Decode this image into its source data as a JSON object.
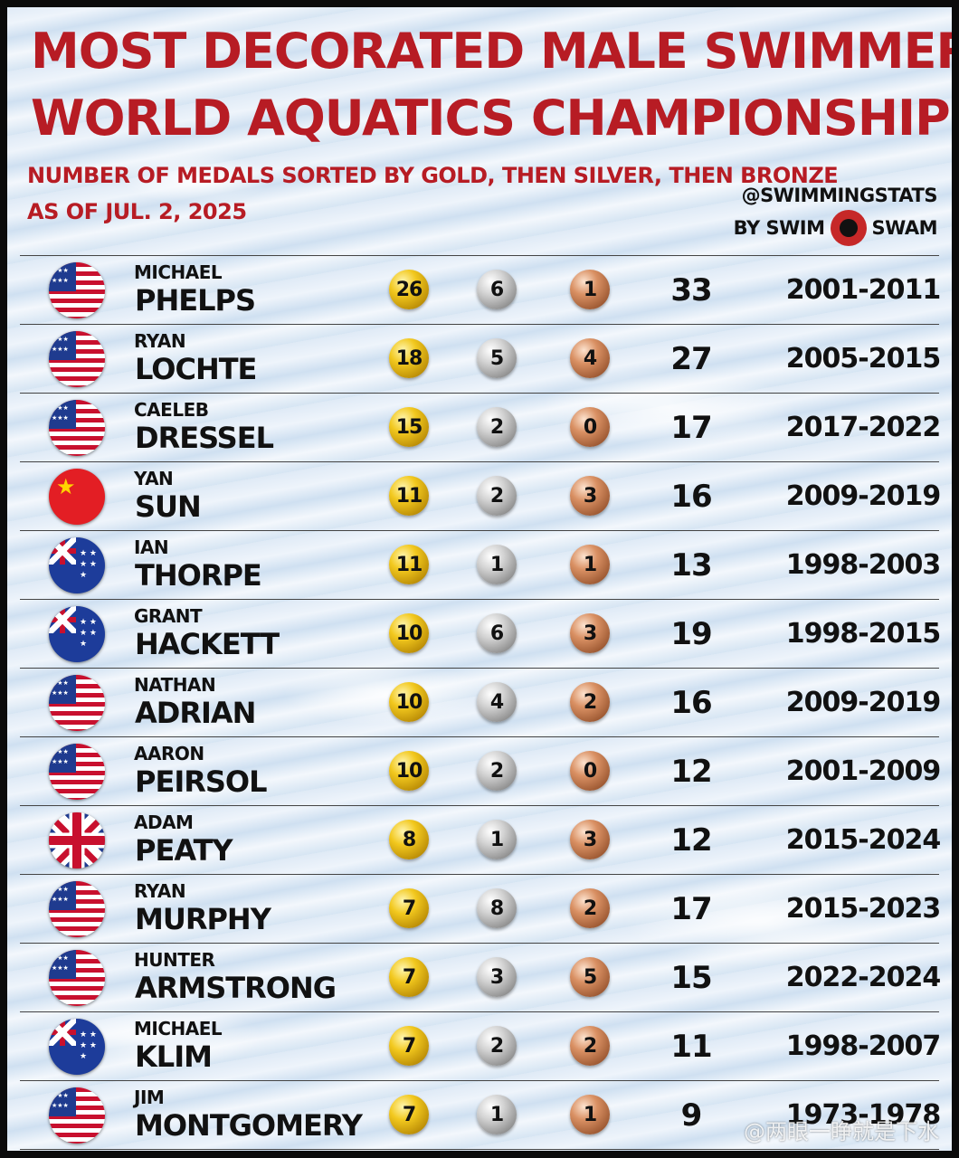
{
  "title": {
    "line1": "MOST DECORATED MALE SWIMMERS",
    "line2": "WORLD AQUATICS CHAMPIONSHIPS"
  },
  "subtitle": {
    "line1": "NUMBER OF MEDALS SORTED BY GOLD, THEN SILVER, THEN BRONZE",
    "line2": "AS OF JUL. 2, 2025"
  },
  "credit": {
    "handle": "@SWIMMINGSTATS",
    "by": "BY SWIM",
    "brand": "SWAM"
  },
  "colors": {
    "title_red": "#b71c24",
    "gold": "#f2c81e",
    "silver": "#d2d2d2",
    "bronze": "#d99063"
  },
  "swimmers": [
    {
      "first": "MICHAEL",
      "last": "PHELPS",
      "flag": "usa",
      "gold": "26",
      "silver": "6",
      "bronze": "1",
      "total": "33",
      "years": "2001-2011"
    },
    {
      "first": "RYAN",
      "last": "LOCHTE",
      "flag": "usa",
      "gold": "18",
      "silver": "5",
      "bronze": "4",
      "total": "27",
      "years": "2005-2015"
    },
    {
      "first": "CAELEB",
      "last": "DRESSEL",
      "flag": "usa",
      "gold": "15",
      "silver": "2",
      "bronze": "0",
      "total": "17",
      "years": "2017-2022"
    },
    {
      "first": "YAN",
      "last": "SUN",
      "flag": "chn",
      "gold": "11",
      "silver": "2",
      "bronze": "3",
      "total": "16",
      "years": "2009-2019"
    },
    {
      "first": "IAN",
      "last": "THORPE",
      "flag": "aus",
      "gold": "11",
      "silver": "1",
      "bronze": "1",
      "total": "13",
      "years": "1998-2003"
    },
    {
      "first": "GRANT",
      "last": "HACKETT",
      "flag": "aus",
      "gold": "10",
      "silver": "6",
      "bronze": "3",
      "total": "19",
      "years": "1998-2015"
    },
    {
      "first": "NATHAN",
      "last": "ADRIAN",
      "flag": "usa",
      "gold": "10",
      "silver": "4",
      "bronze": "2",
      "total": "16",
      "years": "2009-2019"
    },
    {
      "first": "AARON",
      "last": "PEIRSOL",
      "flag": "usa",
      "gold": "10",
      "silver": "2",
      "bronze": "0",
      "total": "12",
      "years": "2001-2009"
    },
    {
      "first": "ADAM",
      "last": "PEATY",
      "flag": "gbr",
      "gold": "8",
      "silver": "1",
      "bronze": "3",
      "total": "12",
      "years": "2015-2024"
    },
    {
      "first": "RYAN",
      "last": "MURPHY",
      "flag": "usa",
      "gold": "7",
      "silver": "8",
      "bronze": "2",
      "total": "17",
      "years": "2015-2023"
    },
    {
      "first": "HUNTER",
      "last": "ARMSTRONG",
      "flag": "usa",
      "gold": "7",
      "silver": "3",
      "bronze": "5",
      "total": "15",
      "years": "2022-2024"
    },
    {
      "first": "MICHAEL",
      "last": "KLIM",
      "flag": "aus",
      "gold": "7",
      "silver": "2",
      "bronze": "2",
      "total": "11",
      "years": "1998-2007"
    },
    {
      "first": "JIM",
      "last": "MONTGOMERY",
      "flag": "usa",
      "gold": "7",
      "silver": "1",
      "bronze": "1",
      "total": "9",
      "years": "1973-1978"
    }
  ],
  "watermark": "@两眼一睁就是下水"
}
